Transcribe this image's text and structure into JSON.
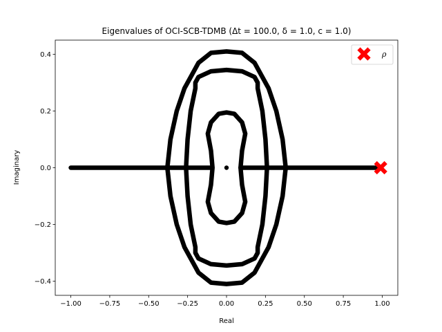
{
  "chart_data": {
    "type": "scatter",
    "title": "Eigenvalues of OCI-SCB-TDMB (Δt = 100.0, δ = 1.0, c = 1.0)",
    "xlabel": "Real",
    "ylabel": "Imaginary",
    "xlim": [
      -1.1,
      1.1
    ],
    "ylim": [
      -0.45,
      0.45
    ],
    "xticks": [
      -1.0,
      -0.75,
      -0.5,
      -0.25,
      0.0,
      0.25,
      0.5,
      0.75,
      1.0
    ],
    "xtick_labels": [
      "−1.00",
      "−0.75",
      "−0.50",
      "−0.25",
      "0.00",
      "0.25",
      "0.50",
      "0.75",
      "1.00"
    ],
    "yticks": [
      -0.4,
      -0.2,
      0.0,
      0.2,
      0.4
    ],
    "ytick_labels": [
      "−0.4",
      "−0.2",
      "0.0",
      "0.2",
      "0.4"
    ],
    "grid": false,
    "legend_position": "upper right",
    "series": [
      {
        "name": "",
        "color": "#000000",
        "marker": "dot",
        "description": "eigenvalue curves",
        "real_axis_segments": [
          [
            -1.0,
            -0.1
          ],
          [
            0.09,
            0.99
          ]
        ],
        "isolated_points": [
          [
            0.0,
            0.0
          ]
        ],
        "outer_curve": [
          [
            0.0,
            0.41
          ],
          [
            0.1,
            0.405
          ],
          [
            0.18,
            0.37
          ],
          [
            0.22,
            0.33
          ],
          [
            0.27,
            0.28
          ],
          [
            0.32,
            0.2
          ],
          [
            0.36,
            0.1
          ],
          [
            0.38,
            0.0
          ],
          [
            0.36,
            -0.1
          ],
          [
            0.32,
            -0.2
          ],
          [
            0.27,
            -0.28
          ],
          [
            0.22,
            -0.33
          ],
          [
            0.18,
            -0.37
          ],
          [
            0.1,
            -0.405
          ],
          [
            0.0,
            -0.41
          ],
          [
            -0.1,
            -0.405
          ],
          [
            -0.18,
            -0.37
          ],
          [
            -0.22,
            -0.33
          ],
          [
            -0.27,
            -0.28
          ],
          [
            -0.32,
            -0.2
          ],
          [
            -0.36,
            -0.1
          ],
          [
            -0.38,
            0.0
          ],
          [
            -0.36,
            0.1
          ],
          [
            -0.32,
            0.2
          ],
          [
            -0.27,
            0.28
          ],
          [
            -0.22,
            0.33
          ],
          [
            -0.18,
            0.37
          ],
          [
            -0.1,
            0.405
          ],
          [
            0.0,
            0.41
          ]
        ],
        "middle_curve": [
          [
            0.0,
            0.345
          ],
          [
            0.1,
            0.34
          ],
          [
            0.18,
            0.32
          ],
          [
            0.2,
            0.3
          ],
          [
            0.2,
            0.28
          ],
          [
            0.23,
            0.2
          ],
          [
            0.25,
            0.1
          ],
          [
            0.26,
            0.0
          ],
          [
            0.25,
            -0.1
          ],
          [
            0.23,
            -0.2
          ],
          [
            0.2,
            -0.28
          ],
          [
            0.2,
            -0.3
          ],
          [
            0.18,
            -0.32
          ],
          [
            0.1,
            -0.34
          ],
          [
            0.0,
            -0.345
          ],
          [
            -0.1,
            -0.34
          ],
          [
            -0.18,
            -0.32
          ],
          [
            -0.2,
            -0.3
          ],
          [
            -0.2,
            -0.28
          ],
          [
            -0.23,
            -0.2
          ],
          [
            -0.25,
            -0.1
          ],
          [
            -0.26,
            0.0
          ],
          [
            -0.25,
            0.1
          ],
          [
            -0.23,
            0.2
          ],
          [
            -0.2,
            0.28
          ],
          [
            -0.2,
            0.3
          ],
          [
            -0.18,
            0.32
          ],
          [
            -0.1,
            0.34
          ],
          [
            0.0,
            0.345
          ]
        ],
        "inner_curve": [
          [
            0.0,
            0.195
          ],
          [
            0.05,
            0.19
          ],
          [
            0.1,
            0.16
          ],
          [
            0.12,
            0.12
          ],
          [
            0.1,
            0.06
          ],
          [
            0.09,
            0.0
          ],
          [
            0.1,
            -0.06
          ],
          [
            0.12,
            -0.12
          ],
          [
            0.1,
            -0.16
          ],
          [
            0.05,
            -0.19
          ],
          [
            0.0,
            -0.195
          ],
          [
            -0.05,
            -0.19
          ],
          [
            -0.1,
            -0.16
          ],
          [
            -0.12,
            -0.12
          ],
          [
            -0.1,
            -0.06
          ],
          [
            -0.09,
            0.0
          ],
          [
            -0.1,
            0.06
          ],
          [
            -0.12,
            0.12
          ],
          [
            -0.1,
            0.16
          ],
          [
            -0.05,
            0.19
          ],
          [
            0.0,
            0.195
          ]
        ]
      },
      {
        "name": "ρ",
        "color": "#ff0000",
        "marker": "X",
        "points": [
          [
            0.99,
            0.0
          ]
        ]
      }
    ]
  }
}
